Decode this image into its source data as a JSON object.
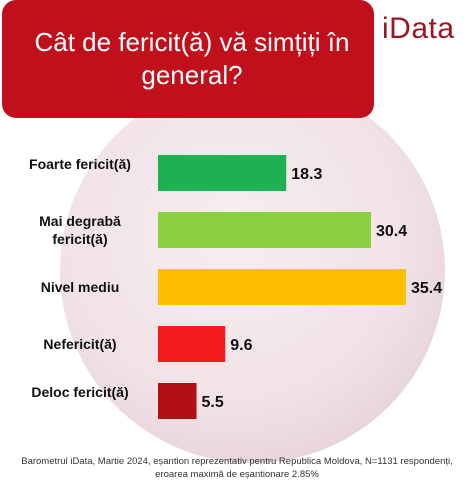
{
  "title": "Cât de fericit(ă) vă simțiți în general?",
  "logo": "iData",
  "footer": "Barometrul iData, Martie 2024, eșantion reprezentativ pentru Republica Moldova, N=1131 respondenți, eroarea maximă de eșantionare 2.85%",
  "chart_data": {
    "type": "bar",
    "orientation": "horizontal",
    "title": "Cât de fericit(ă) vă simțiți în general?",
    "categories": [
      "Foarte fericit(ă)",
      "Mai degrabă fericit(ă)",
      "Nivel mediu",
      "Nefericit(ă)",
      "Deloc fericit(ă)"
    ],
    "values": [
      18.3,
      30.4,
      35.4,
      9.6,
      5.5
    ],
    "value_labels": [
      "18.3",
      "30.4",
      "35.4",
      "9.6",
      "5.5"
    ],
    "colors": [
      "#1db152",
      "#8ccf3f",
      "#ffbf00",
      "#f21c1c",
      "#b20f17"
    ],
    "xlim": [
      0,
      35.4
    ],
    "grid": false,
    "legend": "none"
  }
}
